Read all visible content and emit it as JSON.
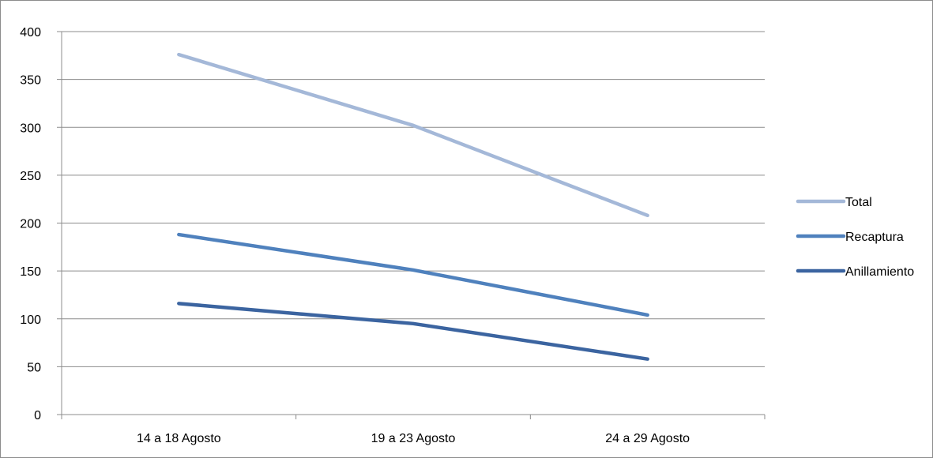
{
  "chart_data": {
    "type": "line",
    "title": "",
    "xlabel": "",
    "ylabel": "",
    "categories": [
      "14 a 18 Agosto",
      "19 a 23 Agosto",
      "24 a 29 Agosto"
    ],
    "ylim": [
      0,
      400
    ],
    "yticks": [
      0,
      50,
      100,
      150,
      200,
      250,
      300,
      350,
      400
    ],
    "grid": true,
    "legend_position": "right",
    "series": [
      {
        "name": "Total",
        "values": [
          376,
          302,
          208
        ],
        "color": "#a4b8d8"
      },
      {
        "name": "Recaptura",
        "values": [
          188,
          151,
          104
        ],
        "color": "#4f81bd"
      },
      {
        "name": "Anillamiento",
        "values": [
          116,
          95,
          58
        ],
        "color": "#3b64a0"
      }
    ]
  }
}
